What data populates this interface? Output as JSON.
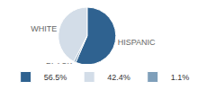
{
  "chart_data": {
    "type": "pie",
    "categories": [
      "HISPANIC",
      "WHITE",
      "BLACK"
    ],
    "values": [
      56.5,
      42.4,
      1.1
    ],
    "value_labels": [
      "56.5%",
      "42.4%",
      "1.1%"
    ],
    "colors": [
      "#2f6290",
      "#d3dde8",
      "#7f9fba"
    ],
    "legend": "bottom"
  }
}
